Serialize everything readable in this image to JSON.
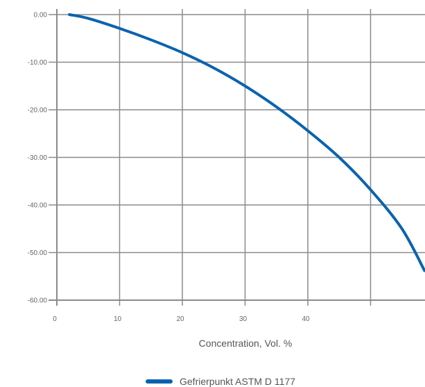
{
  "chart_data": {
    "type": "line",
    "xlabel": "Concentration, Vol. %",
    "ylabel": "",
    "xlim": [
      0,
      60
    ],
    "ylim": [
      -60,
      0
    ],
    "x_ticks": [
      0,
      10,
      20,
      30,
      40,
      50
    ],
    "x_tick_labels": [
      "0",
      "10",
      "20",
      "30",
      "40",
      ""
    ],
    "y_ticks": [
      0,
      -10,
      -20,
      -30,
      -40,
      -50,
      -60
    ],
    "y_tick_labels": [
      "0.00",
      "-10.00",
      "-20.00",
      "-30.00",
      "-40.00",
      "-50.00",
      "-60.00"
    ],
    "grid": true,
    "legend_position": "bottom-center",
    "series": [
      {
        "name": "Gefrierpunkt ASTM D 1177",
        "color": "#0b63ae",
        "x": [
          2,
          5,
          10,
          15,
          20,
          25,
          30,
          35,
          40,
          45,
          50,
          55,
          58.6
        ],
        "y": [
          0,
          -0.8,
          -2.9,
          -5.3,
          -8.0,
          -11.2,
          -15.0,
          -19.4,
          -24.4,
          -30.0,
          -36.8,
          -45.0,
          -53.8
        ]
      }
    ]
  }
}
